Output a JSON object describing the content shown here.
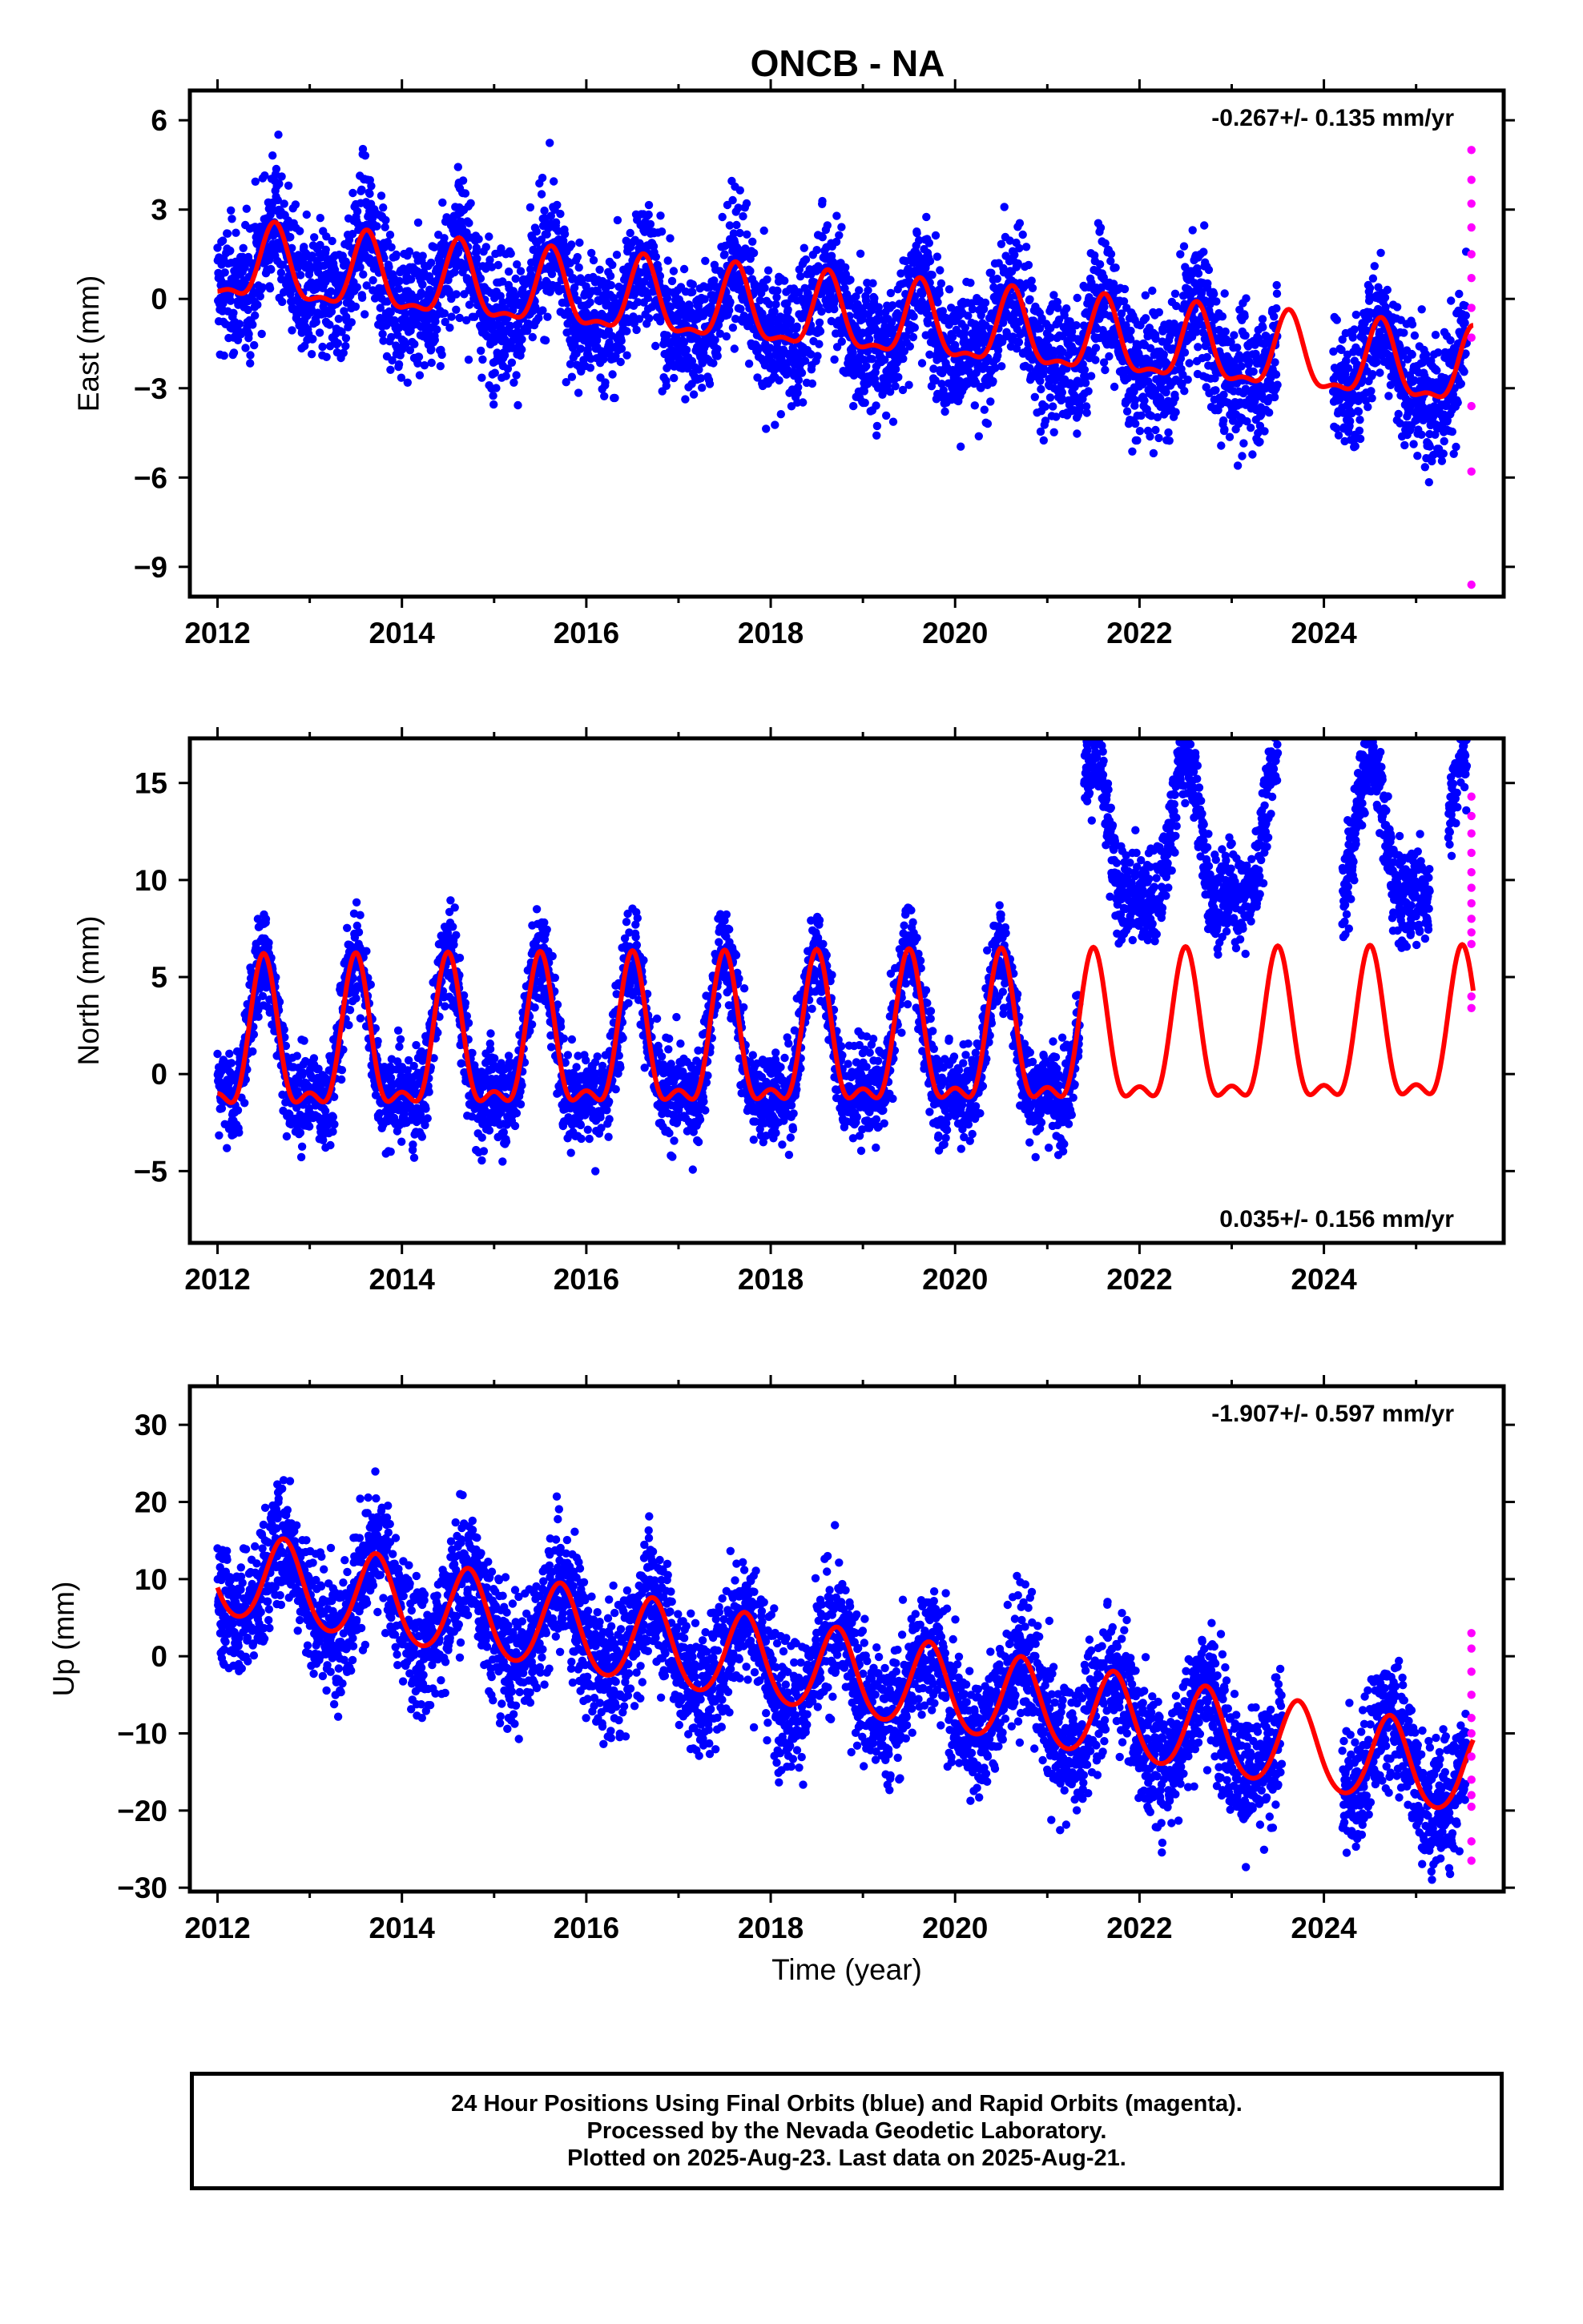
{
  "title": "ONCB - NA",
  "colors": {
    "final": "#0000ff",
    "rapid": "#ff00ff",
    "model": "#ff0000",
    "axes": "#000000"
  },
  "footer": {
    "line1": "24 Hour Positions Using Final Orbits (blue) and Rapid Orbits (magenta).",
    "line2": "Processed by the Nevada Geodetic Laboratory.",
    "line3": "Plotted on 2025-Aug-23. Last data on 2025-Aug-21."
  },
  "chart_data": [
    {
      "type": "scatter",
      "ylabel": "East (mm)",
      "xlabel": "",
      "xlim": [
        2011.7,
        2025.95
      ],
      "ylim": [
        -10,
        7
      ],
      "xticks": [
        2012,
        2014,
        2016,
        2018,
        2020,
        2022,
        2024
      ],
      "yticks": [
        6,
        3,
        0,
        -3,
        -6,
        -9
      ],
      "ytick_labels": [
        "6",
        "3",
        "0",
        "−3",
        "−6",
        "−9"
      ],
      "rate": "-0.267+/- 0.135 mm/yr",
      "rate_position": "top-right",
      "final_orbit_coverage": [
        [
          2012.0,
          2023.5
        ],
        [
          2024.1,
          2025.55
        ]
      ],
      "trend_intercept": 1.1,
      "trend_slope": -0.267,
      "annual_amplitude": 1.2,
      "annual_peak": 0.62,
      "semiannual_amplitude": 0.45,
      "semiannual_peak": 0.62,
      "scatter_sd": 1.1,
      "rapid_orbit_values": [
        5.0,
        4.0,
        3.2,
        2.4,
        1.5,
        0.7,
        -0.3,
        -1.3,
        -3.6,
        -5.8,
        -9.6
      ],
      "rapid_orbit_x": 2025.6
    },
    {
      "type": "scatter",
      "ylabel": "North (mm)",
      "xlabel": "",
      "xlim": [
        2011.7,
        2025.95
      ],
      "ylim": [
        -8.7,
        17.3
      ],
      "xticks": [
        2012,
        2014,
        2016,
        2018,
        2020,
        2022,
        2024
      ],
      "yticks": [
        15,
        10,
        5,
        0,
        -5
      ],
      "ytick_labels": [
        "15",
        "10",
        "5",
        "0",
        "−5"
      ],
      "rate": "0.035+/- 0.156 mm/yr",
      "rate_position": "bottom-right",
      "final_orbit_coverage": [
        [
          2012.0,
          2021.35
        ],
        [
          2021.4,
          2023.5
        ],
        [
          2024.2,
          2025.15
        ],
        [
          2025.35,
          2025.55
        ]
      ],
      "offset_after": 2021.4,
      "offset_value": 10.0,
      "trend_intercept": 1.1,
      "trend_slope": 0.035,
      "annual_amplitude": 3.6,
      "annual_peak": 0.5,
      "semiannual_amplitude": 1.5,
      "semiannual_peak": 0.5,
      "scatter_sd": 1.2,
      "rapid_orbit_values": [
        14.3,
        13.3,
        12.4,
        11.4,
        10.4,
        9.6,
        8.8,
        8.0,
        7.3,
        6.7,
        4.0,
        3.4
      ],
      "rapid_orbit_x": 2025.6
    },
    {
      "type": "scatter",
      "ylabel": "Up (mm)",
      "xlabel": "Time (year)",
      "xlim": [
        2011.7,
        2025.95
      ],
      "ylim": [
        -30.5,
        35
      ],
      "xticks": [
        2012,
        2014,
        2016,
        2018,
        2020,
        2022,
        2024
      ],
      "yticks": [
        30,
        20,
        10,
        0,
        -10,
        -20,
        -30
      ],
      "ytick_labels": [
        "30",
        "20",
        "10",
        "0",
        "−10",
        "−20",
        "−30"
      ],
      "rate": "-1.907+/- 0.597 mm/yr",
      "rate_position": "top-right",
      "final_orbit_coverage": [
        [
          2012.0,
          2023.55
        ],
        [
          2024.2,
          2025.55
        ]
      ],
      "trend_intercept": 10.5,
      "trend_slope": -1.907,
      "annual_amplitude": 5.5,
      "annual_peak": 0.72,
      "semiannual_amplitude": 0.6,
      "semiannual_peak": 0.72,
      "scatter_sd": 4.2,
      "rapid_orbit_values": [
        3.0,
        1.0,
        -2.0,
        -5.0,
        -8.0,
        -10.0,
        -13.0,
        -16.0,
        -18.0,
        -19.5,
        -24.0,
        -26.5
      ],
      "rapid_orbit_x": 2025.6
    }
  ]
}
